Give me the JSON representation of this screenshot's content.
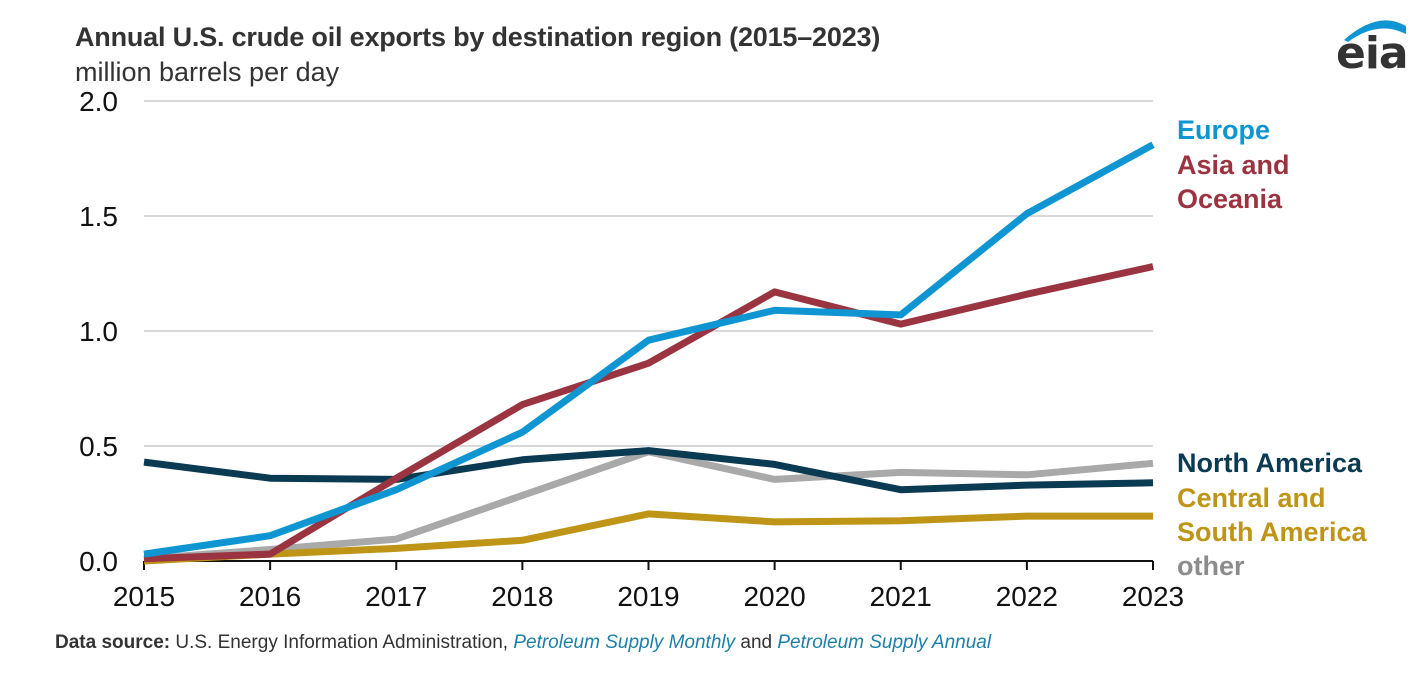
{
  "header": {
    "title": "Annual U.S. crude oil exports by destination region (2015–2023)",
    "subtitle": "million barrels per day",
    "logo_text": "eia"
  },
  "footer": {
    "source_label": "Data source:",
    "source_text": " U.S. Energy Information Administration, ",
    "link1": "Petroleum Supply Monthly",
    "and_text": " and ",
    "link2": "Petroleum Supply Annual"
  },
  "chart_data": {
    "type": "line",
    "title": "Annual U.S. crude oil exports by destination region (2015–2023)",
    "ylabel": "million barrels per day",
    "xlabel": "",
    "x": [
      2015,
      2016,
      2017,
      2018,
      2019,
      2020,
      2021,
      2022,
      2023
    ],
    "x_tick_labels": [
      "2015",
      "2016",
      "2017",
      "2018",
      "2019",
      "2020",
      "2021",
      "2022",
      "2023"
    ],
    "ylim": [
      0,
      2.0
    ],
    "y_ticks": [
      0.0,
      0.5,
      1.0,
      1.5,
      2.0
    ],
    "y_tick_labels": [
      "0.0",
      "0.5",
      "1.0",
      "1.5",
      "2.0"
    ],
    "grid": true,
    "legend_placement": "right",
    "series": [
      {
        "name": "Europe",
        "label_lines": [
          "Europe"
        ],
        "color": "#0f96d2",
        "values": [
          0.03,
          0.11,
          0.31,
          0.56,
          0.96,
          1.09,
          1.07,
          1.51,
          1.81
        ]
      },
      {
        "name": "Asia and Oceania",
        "label_lines": [
          "Asia and",
          "Oceania"
        ],
        "color": "#9b3441",
        "values": [
          0.01,
          0.03,
          0.36,
          0.68,
          0.86,
          1.17,
          1.03,
          1.16,
          1.28
        ]
      },
      {
        "name": "North America",
        "label_lines": [
          "North America"
        ],
        "color": "#0b3a53",
        "values": [
          0.43,
          0.36,
          0.355,
          0.44,
          0.48,
          0.42,
          0.31,
          0.33,
          0.34
        ]
      },
      {
        "name": "Central and South America",
        "label_lines": [
          "Central and",
          "South America"
        ],
        "color": "#bf9517",
        "values": [
          0.0,
          0.03,
          0.055,
          0.09,
          0.205,
          0.17,
          0.175,
          0.195,
          0.195
        ]
      },
      {
        "name": "other",
        "label_lines": [
          "other"
        ],
        "color": "#a9a9a9",
        "label_color": "#8c8c8c",
        "values": [
          0.01,
          0.05,
          0.095,
          0.285,
          0.475,
          0.355,
          0.385,
          0.375,
          0.425
        ]
      }
    ]
  }
}
